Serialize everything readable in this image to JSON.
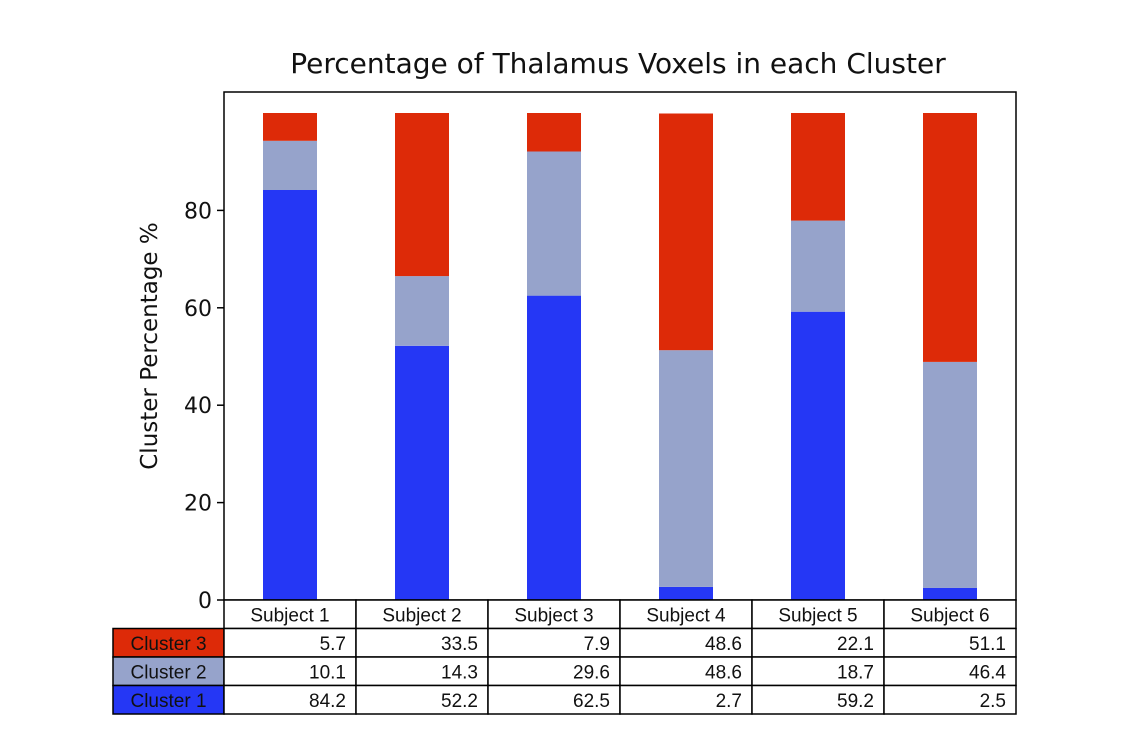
{
  "chart_data": {
    "type": "bar",
    "stacked": true,
    "title": "Percentage of Thalamus Voxels in each Cluster",
    "xlabel": "",
    "ylabel": "Cluster Percentage %",
    "ylim": [
      0,
      105
    ],
    "yticks": [
      0,
      20,
      40,
      60,
      80
    ],
    "grid": false,
    "categories": [
      "Subject 1",
      "Subject 2",
      "Subject 3",
      "Subject 4",
      "Subject 5",
      "Subject 6"
    ],
    "series": [
      {
        "name": "Cluster 1",
        "color": "#2537f5",
        "values": [
          84.2,
          52.2,
          62.5,
          2.7,
          59.2,
          2.5
        ]
      },
      {
        "name": "Cluster 2",
        "color": "#96a3cb",
        "values": [
          10.1,
          14.3,
          29.6,
          48.6,
          18.7,
          46.4
        ]
      },
      {
        "name": "Cluster 3",
        "color": "#dd2a08",
        "values": [
          5.7,
          33.5,
          7.9,
          48.6,
          22.1,
          51.1
        ]
      }
    ],
    "table": {
      "row_order": [
        "Cluster 3",
        "Cluster 2",
        "Cluster 1"
      ],
      "rows": [
        {
          "label": "Cluster 3",
          "color": "#dd2a08",
          "cells": [
            "5.7",
            "33.5",
            "7.9",
            "48.6",
            "22.1",
            "51.1"
          ]
        },
        {
          "label": "Cluster 2",
          "color": "#96a3cb",
          "cells": [
            "10.1",
            "14.3",
            "29.6",
            "48.6",
            "18.7",
            "46.4"
          ]
        },
        {
          "label": "Cluster 1",
          "color": "#2537f5",
          "cells": [
            "84.2",
            "52.2",
            "62.5",
            "2.7",
            "59.2",
            "2.5"
          ]
        }
      ]
    }
  }
}
